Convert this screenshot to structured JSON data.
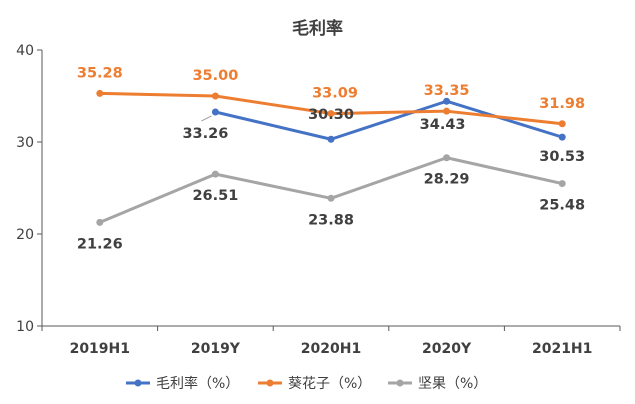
{
  "chart_data": {
    "type": "line",
    "title": "毛利率",
    "categories": [
      "2019H1",
      "2019Y",
      "2020H1",
      "2020Y",
      "2021H1"
    ],
    "ylim": [
      10,
      40
    ],
    "yticks": [
      10,
      20,
      30,
      40
    ],
    "grid": false,
    "legend_position": "bottom",
    "series": [
      {
        "name": "毛利率（%）",
        "color": "#4472C4",
        "values": [
          null,
          33.26,
          30.3,
          34.43,
          30.53
        ],
        "labels": [
          "",
          "33.26",
          "30.30",
          "34.43",
          "30.53"
        ],
        "label_color": "#404040"
      },
      {
        "name": "葵花子（%）",
        "color": "#ED7D31",
        "values": [
          35.28,
          35.0,
          33.09,
          33.35,
          31.98
        ],
        "labels": [
          "35.28",
          "35.00",
          "33.09",
          "33.35",
          "31.98"
        ],
        "label_color": "#ED7D31"
      },
      {
        "name": "坚果（%）",
        "color": "#A5A5A5",
        "values": [
          21.26,
          26.51,
          23.88,
          28.29,
          25.48
        ],
        "labels": [
          "21.26",
          "26.51",
          "23.88",
          "28.29",
          "25.48"
        ],
        "label_color": "#404040"
      }
    ]
  }
}
